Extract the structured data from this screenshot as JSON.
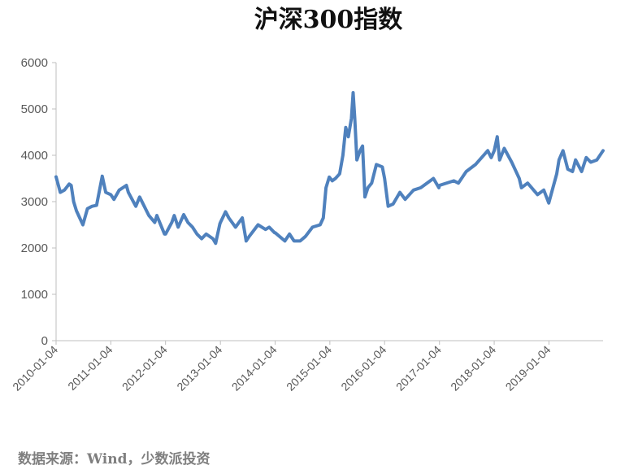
{
  "chart_data": {
    "type": "line",
    "title": "沪深300指数",
    "source": "数据来源：Wind，少数派投资",
    "xlabel": "",
    "ylabel": "",
    "ylim": [
      0,
      6000
    ],
    "yticks": [
      "0",
      "1000",
      "2000",
      "3000",
      "4000",
      "5000",
      "6000"
    ],
    "xticks": [
      "2010-01-04",
      "2011-01-04",
      "2012-01-04",
      "2013-01-04",
      "2014-01-04",
      "2015-01-04",
      "2016-01-04",
      "2017-01-04",
      "2018-01-04",
      "2019-01-04"
    ],
    "xlim": [
      "2010-01-04",
      "2019-12-31"
    ],
    "grid": false,
    "line_color": "#4f81bd",
    "series": [
      {
        "name": "",
        "points": [
          [
            "2010-01-04",
            3535
          ],
          [
            "2010-02-01",
            3200
          ],
          [
            "2010-03-01",
            3250
          ],
          [
            "2010-04-01",
            3380
          ],
          [
            "2010-04-15",
            3350
          ],
          [
            "2010-05-01",
            3000
          ],
          [
            "2010-05-20",
            2800
          ],
          [
            "2010-07-02",
            2500
          ],
          [
            "2010-08-01",
            2850
          ],
          [
            "2010-09-01",
            2900
          ],
          [
            "2010-10-01",
            2920
          ],
          [
            "2010-11-08",
            3550
          ],
          [
            "2010-12-01",
            3200
          ],
          [
            "2011-01-04",
            3150
          ],
          [
            "2011-01-25",
            3050
          ],
          [
            "2011-03-01",
            3250
          ],
          [
            "2011-04-18",
            3350
          ],
          [
            "2011-05-01",
            3200
          ],
          [
            "2011-06-20",
            2900
          ],
          [
            "2011-07-15",
            3100
          ],
          [
            "2011-08-15",
            2900
          ],
          [
            "2011-09-15",
            2700
          ],
          [
            "2011-10-24",
            2550
          ],
          [
            "2011-11-07",
            2700
          ],
          [
            "2011-12-28",
            2300
          ],
          [
            "2012-01-04",
            2300
          ],
          [
            "2012-02-15",
            2550
          ],
          [
            "2012-03-02",
            2700
          ],
          [
            "2012-03-28",
            2450
          ],
          [
            "2012-05-04",
            2720
          ],
          [
            "2012-06-01",
            2550
          ],
          [
            "2012-07-02",
            2450
          ],
          [
            "2012-08-01",
            2300
          ],
          [
            "2012-09-01",
            2200
          ],
          [
            "2012-10-01",
            2300
          ],
          [
            "2012-11-15",
            2200
          ],
          [
            "2012-12-03",
            2100
          ],
          [
            "2012-12-31",
            2520
          ],
          [
            "2013-01-04",
            2550
          ],
          [
            "2013-02-07",
            2780
          ],
          [
            "2013-03-01",
            2650
          ],
          [
            "2013-04-15",
            2450
          ],
          [
            "2013-05-30",
            2650
          ],
          [
            "2013-06-25",
            2150
          ],
          [
            "2013-07-15",
            2250
          ],
          [
            "2013-09-12",
            2500
          ],
          [
            "2013-11-01",
            2400
          ],
          [
            "2013-11-25",
            2450
          ],
          [
            "2013-12-31",
            2330
          ],
          [
            "2014-01-04",
            2330
          ],
          [
            "2014-03-10",
            2150
          ],
          [
            "2014-04-10",
            2300
          ],
          [
            "2014-05-10",
            2150
          ],
          [
            "2014-06-20",
            2150
          ],
          [
            "2014-07-25",
            2250
          ],
          [
            "2014-09-10",
            2450
          ],
          [
            "2014-10-31",
            2500
          ],
          [
            "2014-11-21",
            2650
          ],
          [
            "2014-12-09",
            3300
          ],
          [
            "2014-12-31",
            3530
          ],
          [
            "2015-01-20",
            3450
          ],
          [
            "2015-02-10",
            3500
          ],
          [
            "2015-03-10",
            3600
          ],
          [
            "2015-04-01",
            4000
          ],
          [
            "2015-04-20",
            4600
          ],
          [
            "2015-05-07",
            4400
          ],
          [
            "2015-05-28",
            4800
          ],
          [
            "2015-06-08",
            5350
          ],
          [
            "2015-06-19",
            4800
          ],
          [
            "2015-07-03",
            3900
          ],
          [
            "2015-07-24",
            4100
          ],
          [
            "2015-08-10",
            4200
          ],
          [
            "2015-08-26",
            3100
          ],
          [
            "2015-09-15",
            3300
          ],
          [
            "2015-10-10",
            3400
          ],
          [
            "2015-11-10",
            3800
          ],
          [
            "2015-12-20",
            3750
          ],
          [
            "2016-01-04",
            3500
          ],
          [
            "2016-01-28",
            2900
          ],
          [
            "2016-03-01",
            2950
          ],
          [
            "2016-04-15",
            3200
          ],
          [
            "2016-05-20",
            3050
          ],
          [
            "2016-07-15",
            3250
          ],
          [
            "2016-09-01",
            3300
          ],
          [
            "2016-11-25",
            3500
          ],
          [
            "2016-12-31",
            3300
          ],
          [
            "2017-01-04",
            3350
          ],
          [
            "2017-04-10",
            3450
          ],
          [
            "2017-05-10",
            3400
          ],
          [
            "2017-07-01",
            3650
          ],
          [
            "2017-09-01",
            3800
          ],
          [
            "2017-11-22",
            4100
          ],
          [
            "2017-12-15",
            3950
          ],
          [
            "2018-01-04",
            4100
          ],
          [
            "2018-01-24",
            4400
          ],
          [
            "2018-02-09",
            3900
          ],
          [
            "2018-03-12",
            4150
          ],
          [
            "2018-05-01",
            3850
          ],
          [
            "2018-06-20",
            3500
          ],
          [
            "2018-07-05",
            3300
          ],
          [
            "2018-08-15",
            3400
          ],
          [
            "2018-10-20",
            3150
          ],
          [
            "2018-12-01",
            3250
          ],
          [
            "2019-01-03",
            2970
          ],
          [
            "2019-02-25",
            3600
          ],
          [
            "2019-03-12",
            3900
          ],
          [
            "2019-04-08",
            4100
          ],
          [
            "2019-05-10",
            3700
          ],
          [
            "2019-06-10",
            3650
          ],
          [
            "2019-07-01",
            3900
          ],
          [
            "2019-08-10",
            3650
          ],
          [
            "2019-09-10",
            3950
          ],
          [
            "2019-10-10",
            3850
          ],
          [
            "2019-11-20",
            3900
          ],
          [
            "2019-12-31",
            4100
          ]
        ]
      }
    ]
  }
}
